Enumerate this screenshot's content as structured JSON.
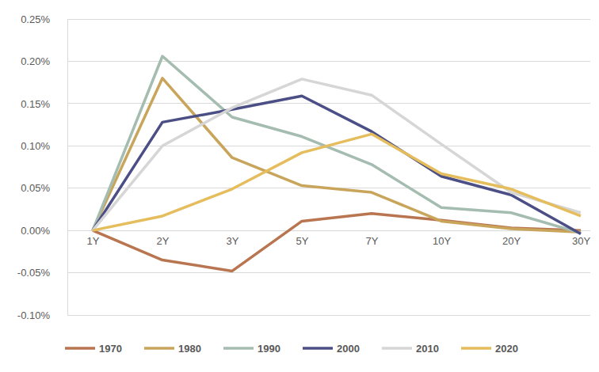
{
  "chart_data": {
    "type": "line",
    "categories": [
      "1Y",
      "2Y",
      "3Y",
      "5Y",
      "7Y",
      "10Y",
      "20Y",
      "30Y"
    ],
    "series": [
      {
        "name": "1970",
        "color": "#B87550",
        "values": [
          0,
          -0.035,
          -0.048,
          0.011,
          0.02,
          0.012,
          0.003,
          0.0
        ]
      },
      {
        "name": "1980",
        "color": "#C9A55C",
        "values": [
          0,
          0.18,
          0.086,
          0.053,
          0.045,
          0.011,
          0.002,
          -0.002
        ]
      },
      {
        "name": "1990",
        "color": "#A5BCB0",
        "values": [
          0,
          0.206,
          0.134,
          0.111,
          0.078,
          0.027,
          0.021,
          -0.003
        ]
      },
      {
        "name": "2000",
        "color": "#4B4F85",
        "values": [
          0,
          0.128,
          0.143,
          0.159,
          0.117,
          0.064,
          0.042,
          -0.004
        ]
      },
      {
        "name": "2010",
        "color": "#D6D6D6",
        "values": [
          0,
          0.1,
          0.145,
          0.179,
          0.16,
          0.102,
          0.045,
          0.021
        ]
      },
      {
        "name": "2020",
        "color": "#E5BD5C",
        "values": [
          0,
          0.017,
          0.049,
          0.092,
          0.114,
          0.067,
          0.049,
          0.017
        ]
      }
    ],
    "ylim": [
      -0.1,
      0.25
    ],
    "yticks": [
      {
        "value": -0.1,
        "label": "-0.10%"
      },
      {
        "value": -0.05,
        "label": "-0.05%"
      },
      {
        "value": 0,
        "label": "0.00%"
      },
      {
        "value": 0.05,
        "label": "0.05%"
      },
      {
        "value": 0.1,
        "label": "0.10%"
      },
      {
        "value": 0.15,
        "label": "0.15%"
      },
      {
        "value": 0.2,
        "label": "0.20%"
      },
      {
        "value": 0.25,
        "label": "0.25%"
      }
    ],
    "grid": true,
    "legend": "bottom"
  }
}
